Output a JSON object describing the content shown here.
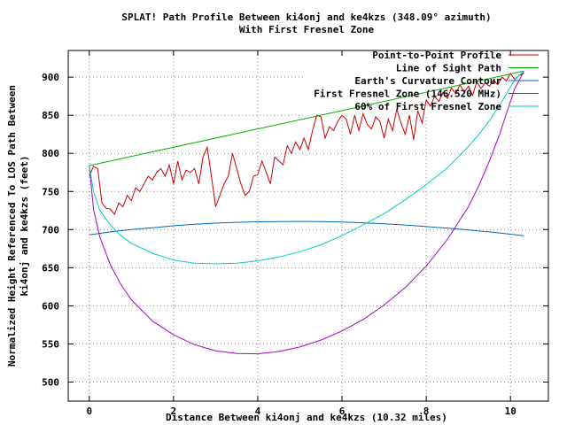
{
  "chart_data": {
    "type": "line",
    "title_line1": "SPLAT! Path Profile Between ki4onj and ke4kzs (348.09° azimuth)",
    "title_line2": "With First Fresnel Zone",
    "xlabel": "Distance Between ki4onj and ke4kzs (10.32 miles)",
    "ylabel_line1": "Normalized Height Referenced To LOS Path Between",
    "ylabel_line2": "ki4onj and ke4kzs (feet)",
    "xlim": [
      -0.5,
      10.9
    ],
    "ylim": [
      475,
      935
    ],
    "xticks": [
      0,
      2,
      4,
      6,
      8,
      10
    ],
    "yticks": [
      500,
      550,
      600,
      650,
      700,
      750,
      800,
      850,
      900
    ],
    "grid": true,
    "legend_position": "top-right",
    "series": [
      {
        "name": "Point-to-Point Profile",
        "color": "#cc0000",
        "x": [
          0,
          0.1,
          0.2,
          0.3,
          0.4,
          0.5,
          0.6,
          0.7,
          0.8,
          0.9,
          1.0,
          1.1,
          1.2,
          1.3,
          1.4,
          1.5,
          1.6,
          1.7,
          1.8,
          1.9,
          2.0,
          2.1,
          2.2,
          2.3,
          2.4,
          2.5,
          2.6,
          2.7,
          2.8,
          2.9,
          3.0,
          3.1,
          3.2,
          3.3,
          3.4,
          3.5,
          3.6,
          3.7,
          3.8,
          3.9,
          4.0,
          4.1,
          4.2,
          4.3,
          4.4,
          4.5,
          4.6,
          4.7,
          4.8,
          4.9,
          5.0,
          5.1,
          5.2,
          5.3,
          5.4,
          5.5,
          5.6,
          5.7,
          5.8,
          5.9,
          6.0,
          6.1,
          6.2,
          6.3,
          6.4,
          6.5,
          6.6,
          6.7,
          6.8,
          6.9,
          7.0,
          7.1,
          7.2,
          7.3,
          7.4,
          7.5,
          7.6,
          7.7,
          7.8,
          7.9,
          8.0,
          8.1,
          8.2,
          8.3,
          8.4,
          8.5,
          8.6,
          8.7,
          8.8,
          8.9,
          9.0,
          9.1,
          9.2,
          9.3,
          9.4,
          9.5,
          9.6,
          9.7,
          9.8,
          9.9,
          10.0,
          10.1,
          10.2,
          10.32
        ],
        "y": [
          770,
          783,
          780,
          735,
          728,
          727,
          720,
          735,
          730,
          745,
          738,
          755,
          750,
          760,
          770,
          765,
          775,
          780,
          770,
          785,
          760,
          790,
          765,
          778,
          775,
          780,
          760,
          795,
          808,
          770,
          730,
          745,
          760,
          770,
          800,
          780,
          760,
          745,
          750,
          770,
          772,
          790,
          775,
          760,
          795,
          790,
          785,
          810,
          800,
          815,
          805,
          820,
          805,
          830,
          850,
          848,
          820,
          835,
          830,
          842,
          850,
          845,
          825,
          850,
          830,
          852,
          838,
          832,
          848,
          842,
          820,
          845,
          830,
          858,
          840,
          825,
          850,
          818,
          856,
          840,
          870,
          862,
          875,
          868,
          880,
          872,
          886,
          878,
          890,
          880,
          888,
          876,
          894,
          885,
          893,
          888,
          896,
          890,
          900,
          895,
          905,
          897,
          902,
          905
        ]
      },
      {
        "name": "Line of Sight Path",
        "color": "#00b000",
        "x": [
          0,
          10.32
        ],
        "y": [
          784,
          908
        ]
      },
      {
        "name": "Earth's Curvature Contour",
        "color": "#0066bb",
        "x": [
          0,
          0.5,
          1,
          1.5,
          2,
          2.5,
          3,
          3.5,
          4,
          4.5,
          5,
          5.5,
          6,
          6.5,
          7,
          7.5,
          8,
          8.5,
          9,
          9.5,
          10,
          10.32
        ],
        "y": [
          693,
          697,
          700,
          702.5,
          705,
          707,
          708.5,
          709.5,
          710.2,
          710.6,
          710.7,
          710.5,
          710,
          709,
          707.7,
          706,
          704,
          702,
          699.5,
          697,
          694,
          692
        ]
      },
      {
        "name": "First Fresnel Zone (146.520 MHz)",
        "color": "#aa00cc",
        "x": [
          0,
          0.1,
          0.25,
          0.5,
          0.75,
          1,
          1.5,
          2,
          2.5,
          3,
          3.5,
          4,
          4.5,
          5,
          5.5,
          6,
          6.5,
          7,
          7.5,
          8,
          8.5,
          9,
          9.25,
          9.5,
          9.75,
          9.9,
          10,
          10.1,
          10.2,
          10.32
        ],
        "y": [
          784,
          727,
          690,
          654,
          628,
          608,
          580,
          562,
          549,
          541,
          537.5,
          537,
          540,
          546,
          555,
          567,
          582,
          601,
          624,
          652,
          687,
          730,
          758,
          790,
          826,
          852,
          868,
          885,
          895,
          908
        ]
      },
      {
        "name": "60% of First Fresnel Zone",
        "color": "#00cccc",
        "x": [
          0,
          0.1,
          0.25,
          0.5,
          0.75,
          1,
          1.5,
          2,
          2.5,
          3,
          3.5,
          4,
          4.5,
          5,
          5.5,
          6,
          6.5,
          7,
          7.5,
          8,
          8.5,
          9,
          9.25,
          9.5,
          9.75,
          9.9,
          10,
          10.1,
          10.2,
          10.32
        ],
        "y": [
          784,
          750,
          725,
          706,
          692,
          682,
          669,
          660,
          656,
          655,
          656,
          659,
          664,
          671,
          680,
          692,
          706,
          721,
          739,
          759,
          781,
          809,
          825,
          843,
          864,
          878,
          887,
          896,
          902,
          908
        ]
      }
    ]
  }
}
